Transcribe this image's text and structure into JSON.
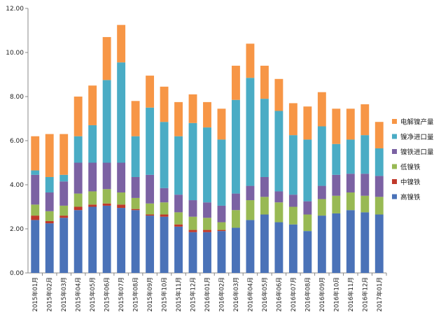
{
  "chart_data": {
    "type": "bar",
    "stacked": true,
    "title": "",
    "xlabel": "",
    "ylabel": "",
    "ylim": [
      0,
      12
    ],
    "yticks": [
      "0.00",
      "2.00",
      "4.00",
      "6.00",
      "8.00",
      "10.00",
      "12.00"
    ],
    "grid": false,
    "legend_position": "right",
    "categories": [
      "2015年01月",
      "2015年02月",
      "2015年03月",
      "2015年04月",
      "2015年05月",
      "2015年06月",
      "2015年07月",
      "2015年08月",
      "2015年09月",
      "2015年10月",
      "2015年11月",
      "2015年12月",
      "2016年01月",
      "2016年02月",
      "2016年03月",
      "2016年04月",
      "2016年05月",
      "2016年06月",
      "2016年07月",
      "2016年08月",
      "2016年09月",
      "2016年10月",
      "2016年11月",
      "2016年12月",
      "2017年01月"
    ],
    "series": [
      {
        "name": "高镍铁",
        "color": "#4a72b8",
        "values": [
          2.4,
          2.25,
          2.5,
          2.85,
          3.0,
          3.05,
          2.95,
          2.85,
          2.6,
          2.55,
          2.1,
          1.85,
          1.85,
          1.9,
          2.05,
          2.4,
          2.65,
          2.3,
          2.2,
          1.9,
          2.6,
          2.7,
          2.85,
          2.75,
          2.65
        ]
      },
      {
        "name": "中镍铁",
        "color": "#c0392b",
        "values": [
          0.2,
          0.1,
          0.1,
          0.15,
          0.1,
          0.1,
          0.15,
          0.05,
          0.05,
          0.1,
          0.1,
          0.1,
          0.1,
          0.05,
          0.0,
          0.0,
          0.0,
          0.0,
          0.0,
          0.0,
          0.0,
          0.0,
          0.0,
          0.0,
          0.0
        ]
      },
      {
        "name": "低镍铁",
        "color": "#98b954",
        "values": [
          0.5,
          0.45,
          0.45,
          0.6,
          0.6,
          0.65,
          0.55,
          0.5,
          0.5,
          0.55,
          0.55,
          0.6,
          0.55,
          0.35,
          0.8,
          0.9,
          0.8,
          0.9,
          0.8,
          0.75,
          0.75,
          0.8,
          0.8,
          0.75,
          0.8
        ]
      },
      {
        "name": "镍铁进口量",
        "color": "#7b62a3",
        "values": [
          1.35,
          0.85,
          1.1,
          1.4,
          1.3,
          1.2,
          1.35,
          0.95,
          1.3,
          0.65,
          0.8,
          0.75,
          0.7,
          0.75,
          0.75,
          0.65,
          0.9,
          0.5,
          0.55,
          0.6,
          0.6,
          0.95,
          0.85,
          1.0,
          0.95
        ]
      },
      {
        "name": "镍净进口量",
        "color": "#4aacc5",
        "values": [
          0.2,
          0.7,
          0.3,
          1.2,
          1.7,
          3.75,
          4.55,
          1.85,
          3.05,
          3.0,
          2.65,
          3.5,
          3.4,
          3.0,
          4.25,
          4.9,
          3.55,
          3.65,
          2.7,
          2.8,
          2.7,
          1.4,
          1.55,
          1.75,
          1.25
        ]
      },
      {
        "name": "电解镍产量",
        "color": "#f79646",
        "values": [
          1.55,
          1.95,
          1.85,
          1.8,
          1.8,
          1.95,
          1.7,
          1.6,
          1.45,
          1.6,
          1.55,
          1.3,
          1.15,
          1.4,
          1.55,
          1.55,
          1.5,
          1.45,
          1.45,
          1.5,
          1.55,
          1.6,
          1.4,
          1.4,
          1.2
        ]
      }
    ]
  }
}
